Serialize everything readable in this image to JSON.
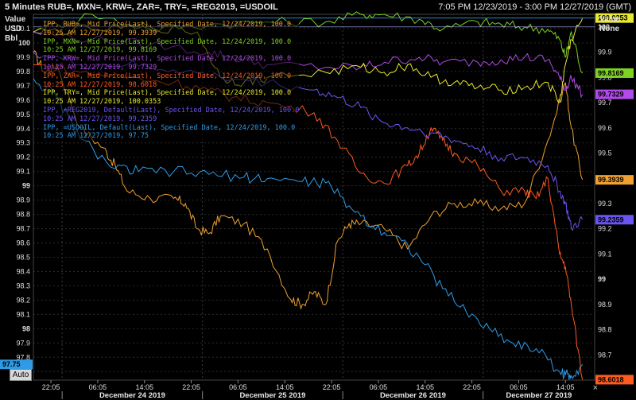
{
  "header": {
    "title": "5 Minutes RUB=, MXN=, KRW=, ZAR=, TRY=, =REG2019, =USDOIL",
    "range": "7:05 PM 12/23/2019 - 3:00 PM 12/27/2019 (GMT)"
  },
  "left_axis_header": [
    "Value",
    "USD",
    "Bbl"
  ],
  "right_axis_header": [
    "Value",
    "None"
  ],
  "auto_button": "Auto",
  "legend": [
    {
      "line1": "IPP, RUB=, Mid Price(Last), Specified Date, 12/24/2019, 100.0",
      "line2": "10:25 AM 12/27/2019, 99.3939",
      "color": "#f0a030"
    },
    {
      "line1": "IPP, MXN=, Mid Price(Last), Specified Date, 12/24/2019, 100.0",
      "line2": "10:25 AM 12/27/2019, 99.8169",
      "color": "#7ed321"
    },
    {
      "line1": "IPP, KRW=, Mid Price(Last), Specified Date, 12/24/2019, 100.0",
      "line2": "10:25 AM 12/27/2019, 99.7329",
      "color": "#b04ae8"
    },
    {
      "line1": "IPP, ZAR=, Mid Price(Last), Specified Date, 12/24/2019, 100.0",
      "line2": "10:25 AM 12/27/2019, 98.6018",
      "color": "#ff5a1f"
    },
    {
      "line1": "IPP, TRY=, Mid Price(Last), Specified Date, 12/24/2019, 100.0",
      "line2": "10:25 AM 12/27/2019, 100.0353",
      "color": "#e8e830"
    },
    {
      "line1": "IPP, =REG2019, Default(Last), Specified Date, 12/24/2019, 100.0",
      "line2": "10:25 AM 12/27/2019, 99.2359",
      "color": "#6a55f0"
    },
    {
      "line1": "IPP, =USDOIL, Default(Last), Specified Date, 12/24/2019, 100.0",
      "line2": "10:25 AM 12/27/2019, 97.75",
      "color": "#2f9be8"
    }
  ],
  "chart_data": {
    "type": "line",
    "title": "5 Minutes RUB=, MXN=, KRW=, ZAR=, TRY=, =REG2019, =USDOIL",
    "x_tick_labels": [
      "22:05",
      "06:05",
      "14:05",
      "22:05",
      "06:05",
      "14:05",
      "22:05",
      "06:05",
      "14:05",
      "22:05",
      "06:05",
      "14:05"
    ],
    "x_day_labels": [
      "December 24 2019",
      "December 25 2019",
      "December 26 2019",
      "December 27 2019"
    ],
    "x_range": [
      "12/23/2019 19:05",
      "12/27/2019 15:00"
    ],
    "left_axis": {
      "label": "Value USD Bbl",
      "ticks": [
        100.1,
        100,
        99.9,
        99.8,
        99.7,
        99.6,
        99.5,
        99.4,
        99.3,
        99.2,
        99.1,
        99,
        98.9,
        98.8,
        98.7,
        98.6,
        98.5,
        98.4,
        98.3,
        98.2,
        98.1,
        98,
        97.9,
        97.8,
        97.7
      ],
      "range": [
        97.64,
        100.2
      ]
    },
    "right_axis": {
      "label": "Value None",
      "ticks": [
        100,
        99.9,
        99.8,
        99.7,
        99.6,
        99.5,
        99.4,
        99.3,
        99.2,
        99.1,
        99,
        98.9,
        98.8,
        98.7
      ],
      "range": [
        98.6,
        100.05
      ]
    },
    "right_value_labels": [
      {
        "text": "100.0353",
        "value": 100.0353,
        "color": "#e8e830"
      },
      {
        "text": "99.8169",
        "value": 99.8169,
        "color": "#7ed321"
      },
      {
        "text": "99.7329",
        "value": 99.7329,
        "color": "#b04ae8"
      },
      {
        "text": "99.3939",
        "value": 99.3939,
        "color": "#f0a030"
      },
      {
        "text": "99.2359",
        "value": 99.2359,
        "color": "#6a55f0"
      },
      {
        "text": "98.6018",
        "value": 98.6018,
        "color": "#ff5a1f"
      }
    ],
    "left_value_label": {
      "text": "97.75",
      "value": 97.75,
      "color": "#2f9be8"
    },
    "grid": true,
    "legend_position": "top-left",
    "series": [
      {
        "name": "IPP, RUB=, Mid Price(Last), Specified Date, 12/24/2019, 100.0",
        "axis": "right",
        "color": "#f0a030",
        "x": [
          0,
          2,
          4,
          8,
          12,
          14,
          16,
          20,
          24,
          26,
          28,
          30,
          32,
          36,
          40,
          44,
          46,
          48,
          50,
          52,
          54,
          56,
          60,
          64,
          68,
          72,
          76,
          80,
          84,
          88,
          91,
          92,
          93.92
        ],
        "y": [
          99.9,
          99.82,
          99.85,
          99.6,
          99.52,
          99.45,
          99.35,
          99.32,
          99.32,
          99.3,
          99.2,
          99.18,
          99.25,
          99.22,
          99.12,
          98.92,
          98.9,
          98.95,
          98.9,
          99.15,
          99.22,
          99.22,
          99.2,
          99.12,
          99.25,
          99.3,
          99.3,
          99.28,
          99.3,
          99.55,
          99.78,
          99.6,
          99.3939
        ]
      },
      {
        "name": "IPP, MXN=, Mid Price(Last), Specified Date, 12/24/2019, 100.0",
        "axis": "right",
        "color": "#7ed321",
        "x": [
          0,
          10,
          20,
          30,
          40,
          50,
          56,
          60,
          66,
          70,
          76,
          80,
          84,
          88,
          90,
          91,
          92,
          93.92
        ],
        "y": [
          99.98,
          100.05,
          99.99,
          100.01,
          100.02,
          100.02,
          100.05,
          100.05,
          100.03,
          99.99,
          100.02,
          100.01,
          100.0,
          99.99,
          99.95,
          99.88,
          99.98,
          99.8169
        ]
      },
      {
        "name": "IPP, KRW=, Mid Price(Last), Specified Date, 12/24/2019, 100.0",
        "axis": "right",
        "color": "#b04ae8",
        "x": [
          0,
          10,
          20,
          30,
          34,
          40,
          50,
          56,
          60,
          66,
          70,
          76,
          80,
          84,
          88,
          90,
          91,
          92,
          93.92
        ],
        "y": [
          99.98,
          99.95,
          99.93,
          99.9,
          99.88,
          99.85,
          99.84,
          99.84,
          99.86,
          99.88,
          99.86,
          99.86,
          99.87,
          99.88,
          99.87,
          99.8,
          99.75,
          99.8,
          99.7329
        ]
      },
      {
        "name": "IPP, ZAR=, Mid Price(Last), Specified Date, 12/24/2019, 100.0",
        "axis": "right",
        "color": "#ff5a1f",
        "x": [
          0,
          8,
          16,
          24,
          30,
          34,
          40,
          48,
          52,
          56,
          60,
          64,
          66,
          68,
          70,
          72,
          76,
          80,
          84,
          86,
          88,
          90,
          91,
          92,
          93.92
        ],
        "y": [
          99.85,
          99.82,
          99.8,
          99.78,
          99.75,
          99.72,
          99.7,
          99.66,
          99.55,
          99.42,
          99.38,
          99.45,
          99.5,
          99.6,
          99.55,
          99.5,
          99.45,
          99.35,
          99.35,
          99.32,
          99.4,
          99.1,
          99.05,
          98.9,
          98.6018
        ]
      },
      {
        "name": "IPP, TRY=, Mid Price(Last), Specified Date, 12/24/2019, 100.0",
        "axis": "right",
        "color": "#e8e830",
        "x": [
          0,
          10,
          20,
          28,
          32,
          36,
          40,
          50,
          56,
          60,
          64,
          68,
          72,
          76,
          80,
          84,
          88,
          90,
          91,
          92,
          93.92
        ],
        "y": [
          99.98,
          99.99,
          100.0,
          99.98,
          99.8,
          99.78,
          99.8,
          99.82,
          99.84,
          99.82,
          99.85,
          99.8,
          99.78,
          99.76,
          99.75,
          99.76,
          99.78,
          99.7,
          99.85,
          99.95,
          100.0353
        ]
      },
      {
        "name": "IPP, =REG2019, Default(Last), Specified Date, 12/24/2019, 100.0",
        "axis": "right",
        "color": "#6a55f0",
        "x": [
          0,
          8,
          16,
          24,
          32,
          40,
          48,
          52,
          56,
          60,
          64,
          68,
          72,
          76,
          80,
          84,
          88,
          90,
          91,
          92,
          93.92
        ],
        "y": [
          99.9,
          99.85,
          99.85,
          99.83,
          99.8,
          99.78,
          99.75,
          99.72,
          99.68,
          99.62,
          99.6,
          99.58,
          99.55,
          99.52,
          99.48,
          99.48,
          99.45,
          99.35,
          99.3,
          99.2,
          99.2359
        ]
      },
      {
        "name": "IPP, =USDOIL, Default(Last), Specified Date, 12/24/2019, 100.0",
        "axis": "left",
        "color": "#2f9be8",
        "x": [
          0,
          4,
          8,
          14,
          18,
          24,
          30,
          36,
          40,
          46,
          50,
          54,
          58,
          62,
          66,
          70,
          74,
          78,
          82,
          86,
          90,
          91,
          92,
          93.92
        ],
        "y": [
          99.75,
          99.62,
          99.33,
          99.12,
          99.1,
          99.1,
          99.08,
          99.06,
          99.05,
          99.03,
          99.02,
          98.86,
          98.72,
          98.65,
          98.5,
          98.28,
          98.12,
          98.0,
          97.9,
          97.86,
          97.7,
          97.68,
          97.67,
          97.75
        ]
      }
    ]
  }
}
